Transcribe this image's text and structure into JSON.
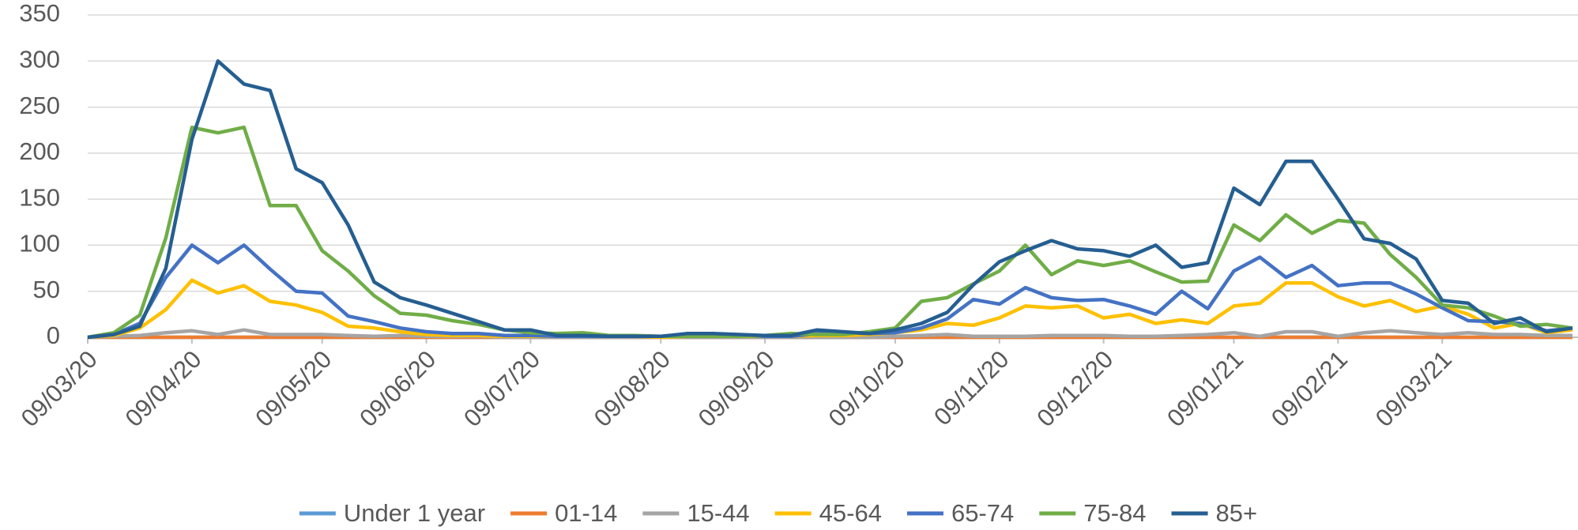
{
  "chart_data": {
    "type": "line",
    "categories": [
      "09/03/20",
      null,
      null,
      null,
      "09/04/20",
      null,
      null,
      null,
      null,
      "09/05/20",
      null,
      null,
      null,
      "09/06/20",
      null,
      null,
      null,
      "09/07/20",
      null,
      null,
      null,
      null,
      "09/08/20",
      null,
      null,
      null,
      "09/09/20",
      null,
      null,
      null,
      null,
      "09/10/20",
      null,
      null,
      null,
      "09/11/20",
      null,
      null,
      null,
      "09/12/20",
      null,
      null,
      null,
      null,
      "09/01/21",
      null,
      null,
      null,
      "09/02/21",
      null,
      null,
      null,
      "09/03/21",
      null,
      null,
      null,
      null,
      null
    ],
    "series": [
      {
        "name": "Under 1 year",
        "color": "#5b9bd5",
        "values": [
          0,
          0,
          0,
          0,
          0,
          0,
          0,
          0,
          0,
          0,
          0,
          0,
          0,
          0,
          0,
          0,
          0,
          0,
          0,
          0,
          0,
          0,
          0,
          0,
          0,
          0,
          0,
          0,
          0,
          0,
          0,
          0,
          0,
          0,
          0,
          0,
          0,
          0,
          0,
          0,
          0,
          0,
          0,
          0,
          0,
          0,
          0,
          0,
          0,
          0,
          0,
          0,
          0,
          0,
          0,
          0,
          0,
          0
        ]
      },
      {
        "name": "01-14",
        "color": "#ed7d31",
        "values": [
          0,
          0,
          0,
          0,
          0,
          0,
          0,
          0,
          0,
          0,
          0,
          0,
          0,
          0,
          0,
          0,
          0,
          0,
          0,
          0,
          0,
          0,
          0,
          0,
          0,
          0,
          0,
          0,
          0,
          0,
          0,
          0,
          0,
          0,
          0,
          0,
          0,
          0,
          0,
          0,
          0,
          0,
          0,
          0,
          0,
          0,
          0,
          0,
          0,
          0,
          0,
          0,
          0,
          0,
          0,
          0,
          0,
          0
        ]
      },
      {
        "name": "15-44",
        "color": "#a5a5a5",
        "values": [
          0,
          1,
          2,
          5,
          7,
          3,
          8,
          3,
          3,
          3,
          2,
          1,
          2,
          1,
          1,
          1,
          0,
          0,
          0,
          0,
          0,
          0,
          0,
          0,
          0,
          0,
          0,
          0,
          0,
          0,
          0,
          1,
          2,
          3,
          1,
          1,
          1,
          2,
          2,
          2,
          1,
          1,
          2,
          3,
          5,
          1,
          6,
          6,
          1,
          5,
          7,
          5,
          3,
          5,
          3,
          3,
          2,
          2
        ]
      },
      {
        "name": "45-64",
        "color": "#ffc000",
        "values": [
          0,
          2,
          10,
          30,
          62,
          48,
          56,
          39,
          35,
          27,
          12,
          10,
          6,
          3,
          2,
          2,
          1,
          1,
          1,
          1,
          1,
          1,
          0,
          1,
          1,
          1,
          1,
          1,
          2,
          2,
          3,
          5,
          8,
          15,
          13,
          21,
          34,
          32,
          34,
          21,
          25,
          15,
          19,
          15,
          34,
          37,
          59,
          59,
          44,
          34,
          40,
          28,
          34,
          25,
          10,
          15,
          5,
          8
        ]
      },
      {
        "name": "65-74",
        "color": "#4472c4",
        "values": [
          0,
          3,
          15,
          65,
          100,
          81,
          100,
          74,
          50,
          48,
          23,
          17,
          10,
          6,
          4,
          4,
          2,
          2,
          1,
          1,
          1,
          1,
          1,
          3,
          3,
          2,
          1,
          1,
          4,
          5,
          4,
          5,
          10,
          20,
          41,
          36,
          54,
          43,
          40,
          41,
          34,
          25,
          50,
          31,
          72,
          87,
          65,
          78,
          56,
          59,
          59,
          47,
          32,
          18,
          17,
          15,
          7,
          10
        ]
      },
      {
        "name": "75-84",
        "color": "#70ad47",
        "values": [
          0,
          5,
          24,
          108,
          228,
          222,
          228,
          143,
          143,
          94,
          72,
          45,
          26,
          24,
          18,
          14,
          8,
          5,
          4,
          5,
          2,
          2,
          1,
          1,
          1,
          1,
          2,
          4,
          3,
          3,
          6,
          10,
          39,
          43,
          58,
          72,
          100,
          68,
          83,
          78,
          83,
          71,
          60,
          61,
          122,
          105,
          133,
          113,
          127,
          124,
          90,
          65,
          35,
          32,
          23,
          12,
          14,
          10
        ]
      },
      {
        "name": "85+",
        "color": "#255e91",
        "values": [
          0,
          3,
          12,
          75,
          215,
          300,
          275,
          268,
          183,
          168,
          122,
          60,
          43,
          35,
          26,
          17,
          8,
          8,
          2,
          2,
          1,
          1,
          1,
          4,
          4,
          3,
          2,
          2,
          8,
          6,
          4,
          8,
          15,
          27,
          57,
          82,
          94,
          105,
          96,
          94,
          88,
          100,
          76,
          81,
          162,
          144,
          191,
          191,
          150,
          107,
          102,
          85,
          40,
          37,
          15,
          21,
          6,
          10
        ]
      }
    ],
    "ylim": [
      0,
      350
    ],
    "yticks": [
      0,
      50,
      100,
      150,
      200,
      250,
      300,
      350
    ],
    "grid": true,
    "legend": "bottom"
  }
}
